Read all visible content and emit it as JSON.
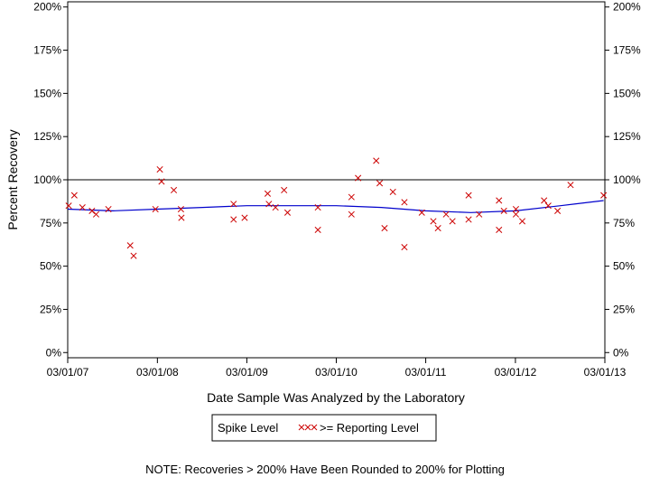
{
  "chart_data": {
    "type": "scatter",
    "xlabel": "Date Sample Was Analyzed by the Laboratory",
    "ylabel": "Percent Recovery",
    "x_ticks": [
      "03/01/07",
      "03/01/08",
      "03/01/09",
      "03/01/10",
      "03/01/11",
      "03/01/12",
      "03/01/13"
    ],
    "xlim": [
      "2007-03-01",
      "2013-03-01"
    ],
    "y_ticks": [
      "0%",
      "25%",
      "50%",
      "75%",
      "100%",
      "125%",
      "150%",
      "175%",
      "200%"
    ],
    "ylim": [
      -3,
      203
    ],
    "reference_line": 100,
    "grid": false,
    "legend": {
      "placement": "bottom-center",
      "items": [
        {
          "label": "Spike Level",
          "marker": "none",
          "color": "#000000"
        },
        {
          "label": ">= Reporting Level",
          "marker": "xxx",
          "color": "#cc0000"
        }
      ]
    },
    "note": "NOTE: Recoveries > 200% Have Been Rounded to 200% for Plotting",
    "series": [
      {
        "name": ">= Reporting Level",
        "color": "#cc0000",
        "marker": "x",
        "points": [
          {
            "x": "2007-03-05",
            "y": 85
          },
          {
            "x": "2007-03-28",
            "y": 91
          },
          {
            "x": "2007-04-30",
            "y": 84
          },
          {
            "x": "2007-06-08",
            "y": 82
          },
          {
            "x": "2007-06-25",
            "y": 80
          },
          {
            "x": "2007-08-14",
            "y": 83
          },
          {
            "x": "2007-11-11",
            "y": 62
          },
          {
            "x": "2007-11-25",
            "y": 56
          },
          {
            "x": "2008-02-22",
            "y": 83
          },
          {
            "x": "2008-03-11",
            "y": 106
          },
          {
            "x": "2008-03-18",
            "y": 99
          },
          {
            "x": "2008-05-07",
            "y": 94
          },
          {
            "x": "2008-06-05",
            "y": 83
          },
          {
            "x": "2008-06-07",
            "y": 78
          },
          {
            "x": "2009-01-06",
            "y": 77
          },
          {
            "x": "2009-01-06",
            "y": 86
          },
          {
            "x": "2009-02-20",
            "y": 78
          },
          {
            "x": "2009-05-25",
            "y": 92
          },
          {
            "x": "2009-05-30",
            "y": 86
          },
          {
            "x": "2009-06-26",
            "y": 84
          },
          {
            "x": "2009-07-31",
            "y": 94
          },
          {
            "x": "2009-08-14",
            "y": 81
          },
          {
            "x": "2009-12-16",
            "y": 71
          },
          {
            "x": "2009-12-16",
            "y": 84
          },
          {
            "x": "2010-05-02",
            "y": 90
          },
          {
            "x": "2010-05-02",
            "y": 80
          },
          {
            "x": "2010-05-29",
            "y": 101
          },
          {
            "x": "2010-08-11",
            "y": 111
          },
          {
            "x": "2010-08-25",
            "y": 98
          },
          {
            "x": "2010-09-14",
            "y": 72
          },
          {
            "x": "2010-10-18",
            "y": 93
          },
          {
            "x": "2010-12-04",
            "y": 87
          },
          {
            "x": "2010-12-04",
            "y": 61
          },
          {
            "x": "2011-02-13",
            "y": 81
          },
          {
            "x": "2011-04-01",
            "y": 76
          },
          {
            "x": "2011-04-20",
            "y": 72
          },
          {
            "x": "2011-05-23",
            "y": 80
          },
          {
            "x": "2011-06-18",
            "y": 76
          },
          {
            "x": "2011-08-23",
            "y": 91
          },
          {
            "x": "2011-08-23",
            "y": 77
          },
          {
            "x": "2011-10-05",
            "y": 80
          },
          {
            "x": "2011-12-25",
            "y": 88
          },
          {
            "x": "2011-12-25",
            "y": 71
          },
          {
            "x": "2012-01-14",
            "y": 82
          },
          {
            "x": "2012-03-03",
            "y": 80
          },
          {
            "x": "2012-03-03",
            "y": 83
          },
          {
            "x": "2012-03-29",
            "y": 76
          },
          {
            "x": "2012-06-26",
            "y": 88
          },
          {
            "x": "2012-07-13",
            "y": 85
          },
          {
            "x": "2012-08-20",
            "y": 82
          },
          {
            "x": "2012-10-12",
            "y": 97
          },
          {
            "x": "2013-02-24",
            "y": 91
          }
        ]
      },
      {
        "name": "Spike Level",
        "color": "#0000cc",
        "type": "line",
        "points": [
          {
            "x": "2007-03-01",
            "y": 83
          },
          {
            "x": "2007-09-01",
            "y": 82
          },
          {
            "x": "2008-03-01",
            "y": 83
          },
          {
            "x": "2008-09-01",
            "y": 84
          },
          {
            "x": "2009-03-01",
            "y": 85
          },
          {
            "x": "2009-09-01",
            "y": 85
          },
          {
            "x": "2010-03-01",
            "y": 85
          },
          {
            "x": "2010-09-01",
            "y": 84
          },
          {
            "x": "2011-03-01",
            "y": 82
          },
          {
            "x": "2011-09-01",
            "y": 81
          },
          {
            "x": "2012-03-01",
            "y": 82
          },
          {
            "x": "2012-09-01",
            "y": 85
          },
          {
            "x": "2013-02-24",
            "y": 88
          }
        ]
      }
    ]
  }
}
